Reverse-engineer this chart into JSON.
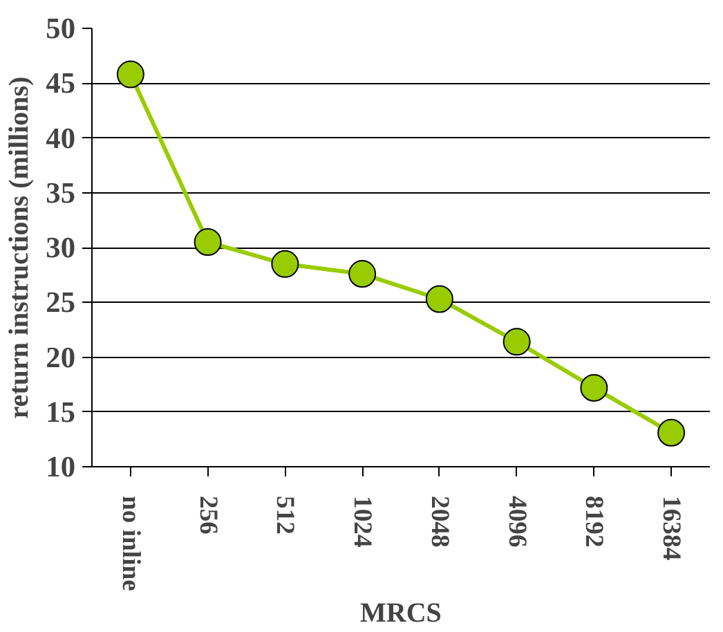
{
  "chart_data": {
    "type": "line",
    "xlabel": "MRCS",
    "ylabel": "return instructions (millions)",
    "categories": [
      "no inline",
      "256",
      "512",
      "1024",
      "2048",
      "4096",
      "8192",
      "16384"
    ],
    "series": [
      {
        "color": "#99cc00",
        "values": [
          45.8,
          30.5,
          28.5,
          27.6,
          25.3,
          21.4,
          17.2,
          13.1
        ]
      }
    ],
    "ylim": [
      10,
      50
    ],
    "yticks": [
      10,
      15,
      20,
      25,
      30,
      35,
      40,
      45,
      50
    ],
    "grid": "y",
    "marker": "circle",
    "line_style": "solid"
  }
}
